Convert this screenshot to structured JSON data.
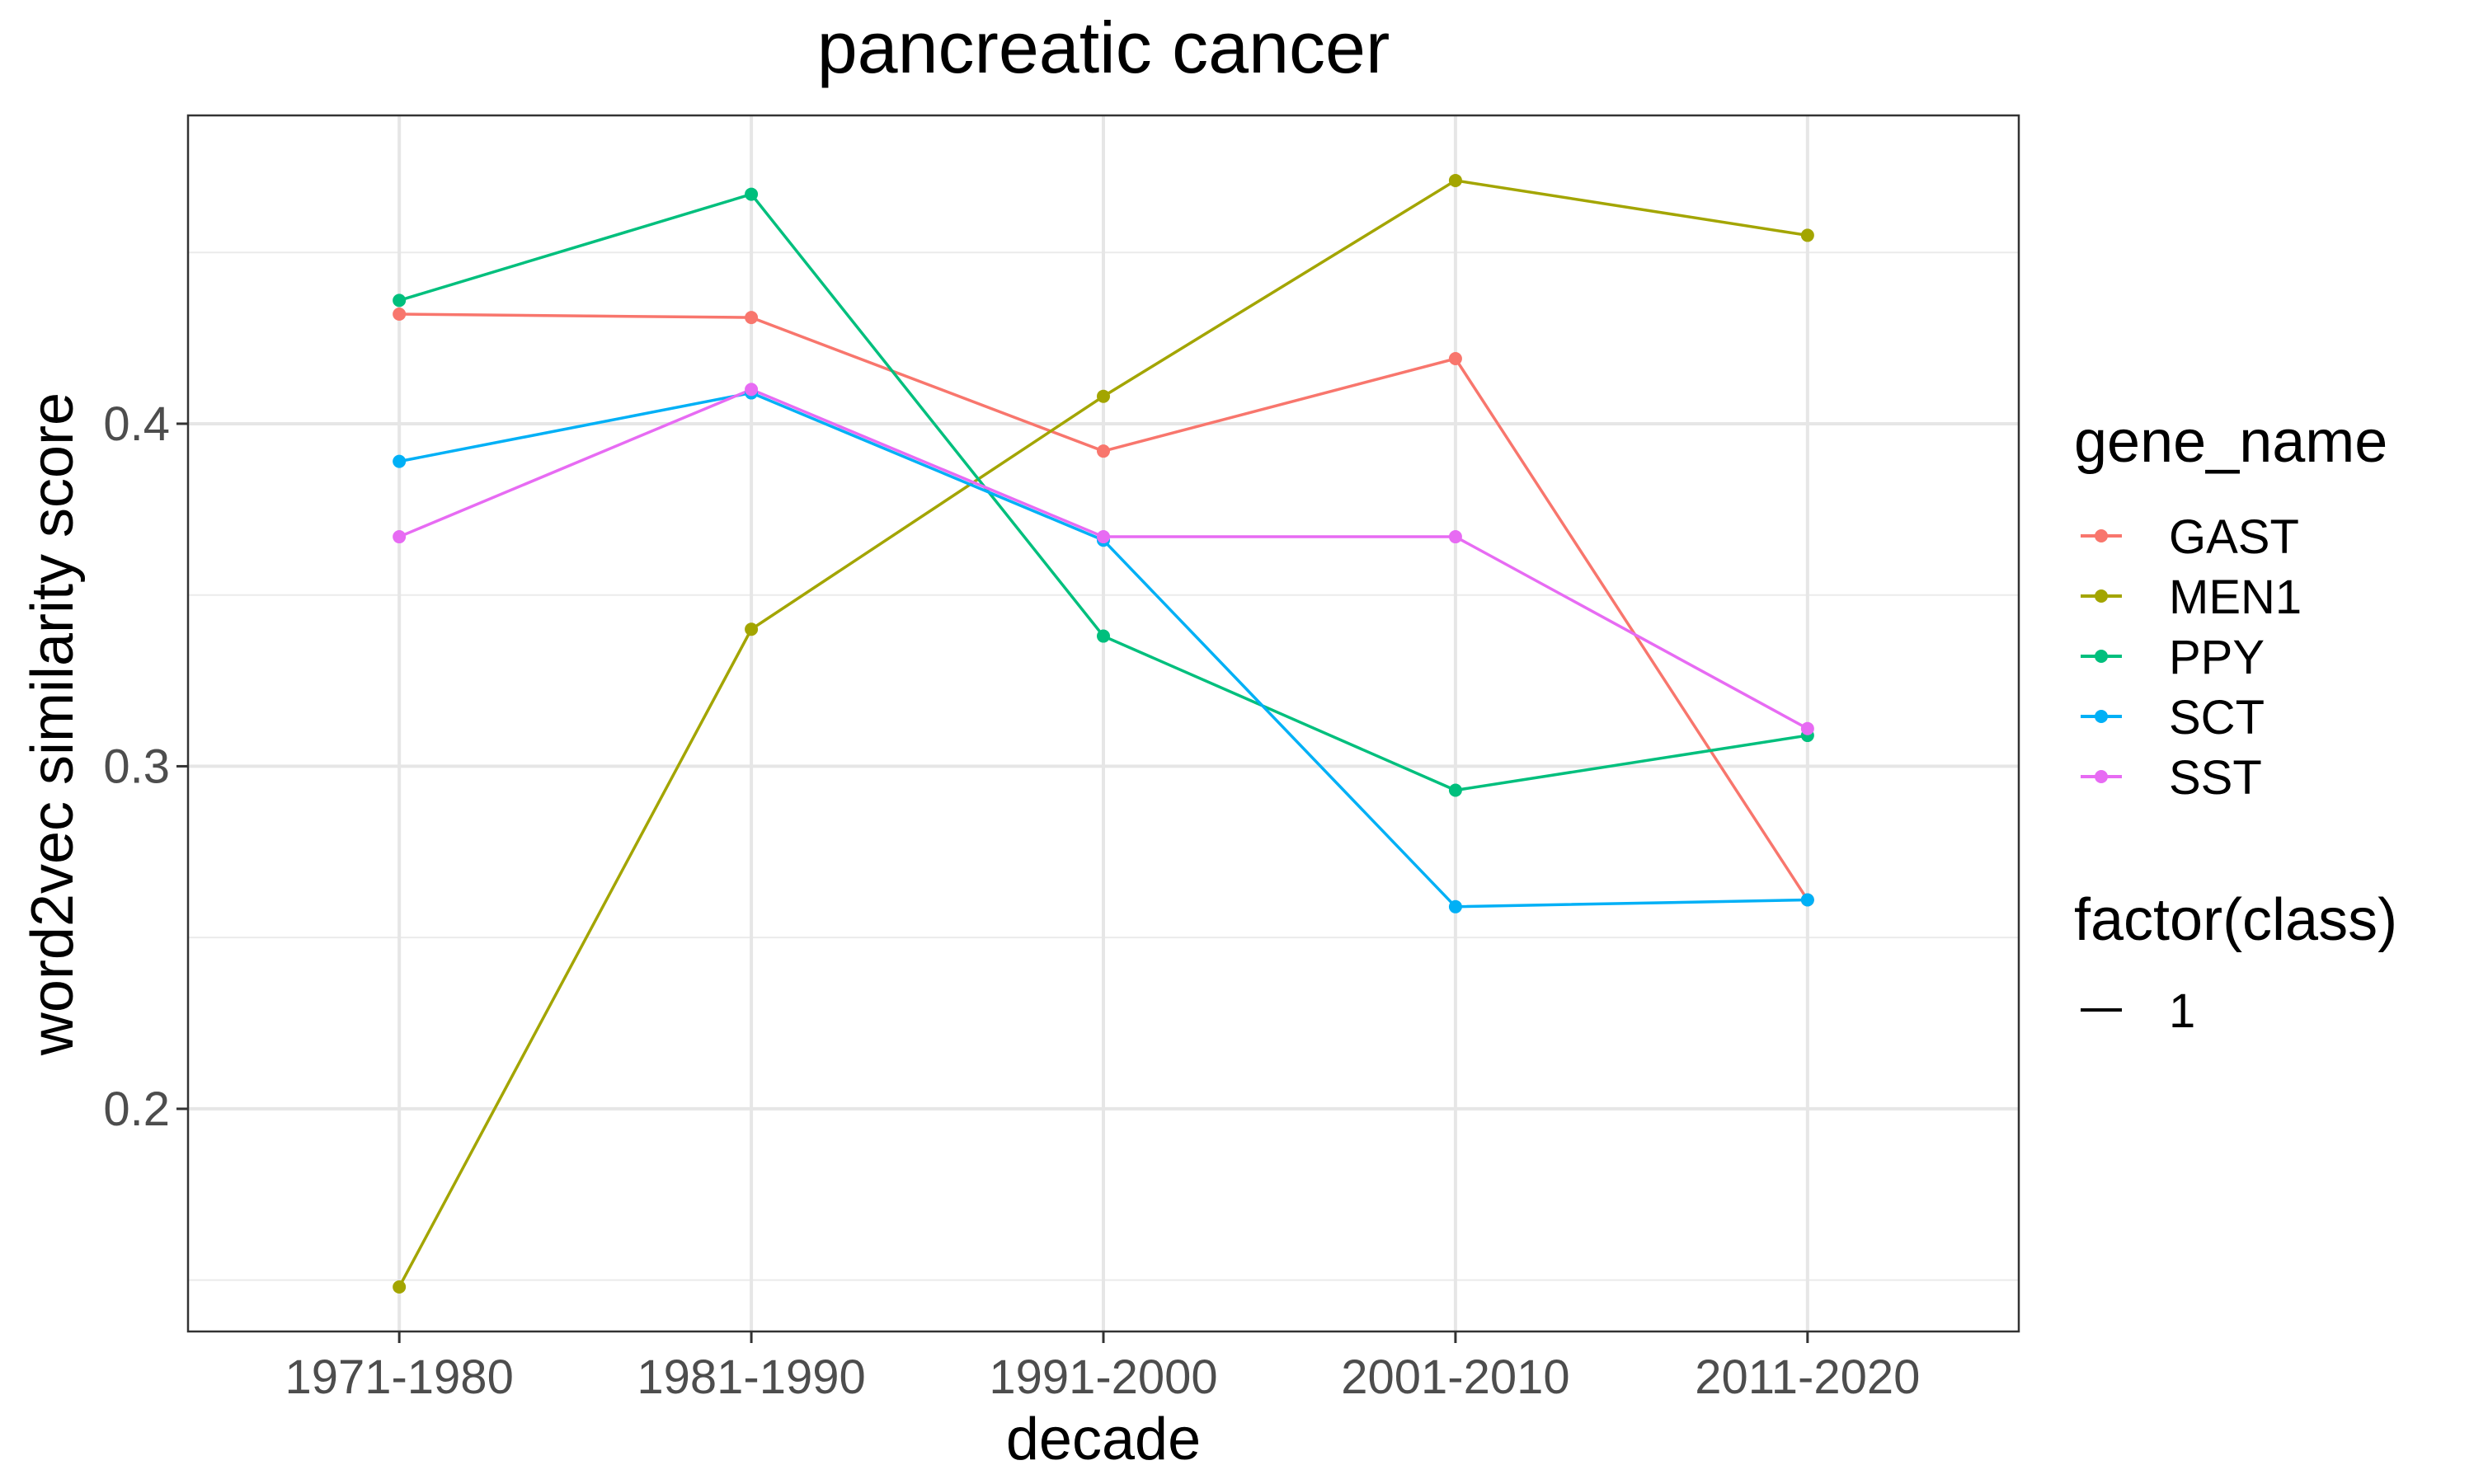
{
  "chart_data": {
    "type": "line",
    "title": "pancreatic cancer",
    "xlabel": "decade",
    "ylabel": "word2vec similarity score",
    "categories": [
      "1971-1980",
      "1981-1990",
      "1991-2000",
      "2001-2010",
      "2011-2020"
    ],
    "ylim": [
      0.135,
      0.49
    ],
    "yticks": [
      0.2,
      0.3,
      0.4
    ],
    "ytick_labels": [
      "0.2",
      "0.3",
      "0.4"
    ],
    "grid": true,
    "series": [
      {
        "name": "GAST",
        "color": "#F8766D",
        "values": [
          0.432,
          0.431,
          0.392,
          0.419,
          0.261
        ]
      },
      {
        "name": "MEN1",
        "color": "#A3A500",
        "values": [
          0.148,
          0.34,
          0.408,
          0.471,
          0.455
        ]
      },
      {
        "name": "PPY",
        "color": "#00BF7D",
        "values": [
          0.436,
          0.467,
          0.338,
          0.293,
          0.309
        ]
      },
      {
        "name": "SCT",
        "color": "#00B0F6",
        "values": [
          0.389,
          0.409,
          0.366,
          0.259,
          0.261
        ]
      },
      {
        "name": "SST",
        "color": "#E76BF3",
        "values": [
          0.367,
          0.41,
          0.367,
          0.367,
          0.311
        ]
      }
    ],
    "legends": [
      {
        "title": "gene_name",
        "items": [
          "GAST",
          "MEN1",
          "PPY",
          "SCT",
          "SST"
        ]
      },
      {
        "title": "factor(class)",
        "items": [
          "1"
        ]
      }
    ]
  }
}
